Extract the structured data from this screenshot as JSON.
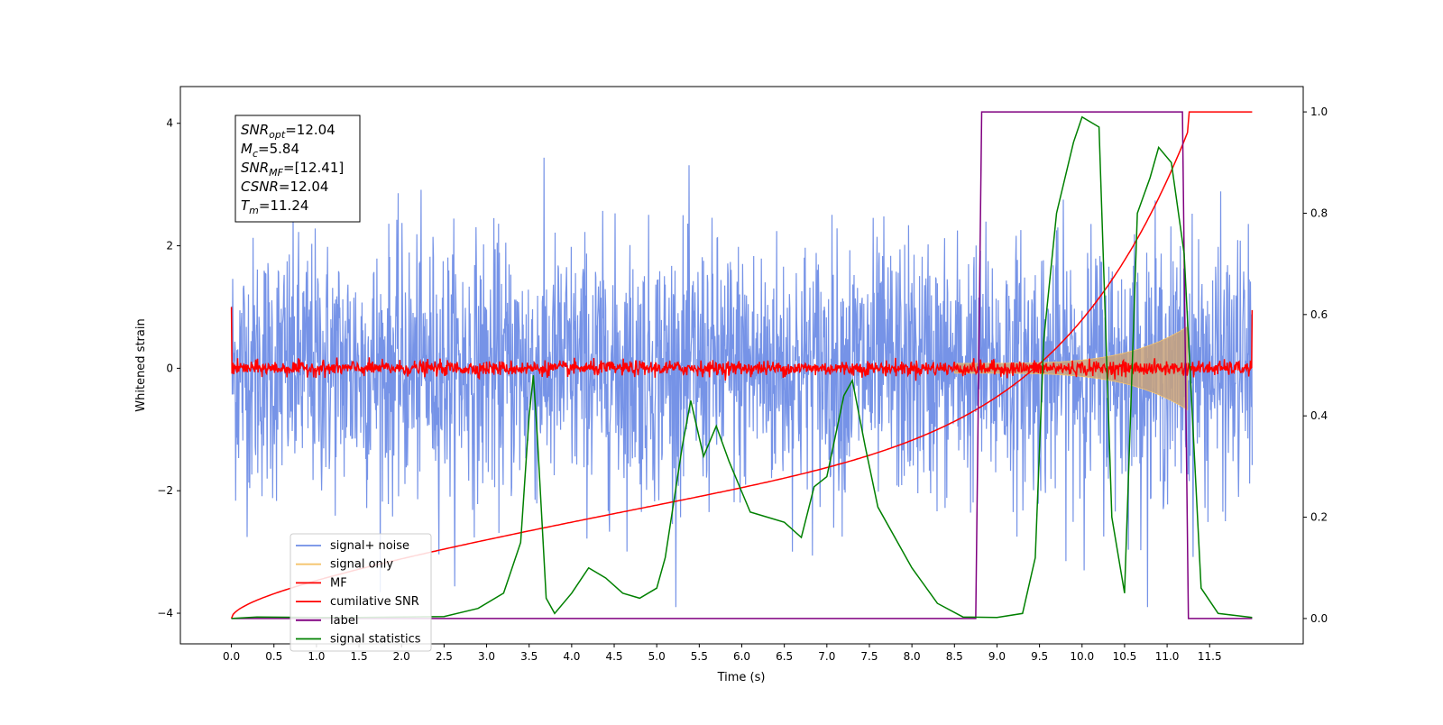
{
  "chart_data": {
    "type": "line",
    "xlabel": "Time (s)",
    "ylabel": "Whitened strain",
    "xlim": [
      -0.6,
      12.6
    ],
    "ylim": [
      -4.5,
      4.6
    ],
    "y2lim": [
      -0.05,
      1.05
    ],
    "x_ticks": [
      "0.0",
      "0.5",
      "1.0",
      "1.5",
      "2.0",
      "2.5",
      "3.0",
      "3.5",
      "4.0",
      "4.5",
      "5.0",
      "5.5",
      "6.0",
      "6.5",
      "7.0",
      "7.5",
      "8.0",
      "8.5",
      "9.0",
      "9.5",
      "10.0",
      "10.5",
      "11.0",
      "11.5"
    ],
    "y_ticks": [
      "4",
      "2",
      "0",
      "−2",
      "−4"
    ],
    "y2_ticks": [
      "1.0",
      "0.8",
      "0.6",
      "0.4",
      "0.2",
      "0.0"
    ],
    "grid": false,
    "legend_position": "lower-left",
    "annotation": {
      "lines": [
        {
          "base": "SNR",
          "sub": "opt",
          "value": "=12.04"
        },
        {
          "base": "M",
          "sub": "c",
          "value": "=5.84"
        },
        {
          "base": "SNR",
          "sub": "MF",
          "value": "=[12.41]"
        },
        {
          "base": "CSNR",
          "sub": "",
          "value": "=12.04"
        },
        {
          "base": "T",
          "sub": "m",
          "value": "=11.24"
        }
      ]
    },
    "series": [
      {
        "name": "signal+ noise",
        "color": "#6f8de6",
        "axis": "left",
        "style": "noise band (std ~1, peaks to ±4)"
      },
      {
        "name": "signal only",
        "color": "#f5c36b",
        "axis": "left",
        "style": "chirp envelope growing from 8.6 s to 11.24 s"
      },
      {
        "name": "MF",
        "color": "#ff0000",
        "axis": "left",
        "style": "small noise around 0"
      },
      {
        "name": "cumilative SNR",
        "color": "#ff0000",
        "axis": "right",
        "x": [
          0.0,
          0.5,
          1.0,
          2.0,
          3.0,
          4.0,
          5.0,
          6.0,
          7.0,
          8.0,
          8.5,
          9.0,
          9.5,
          10.0,
          10.5,
          11.0,
          11.24,
          12.0
        ],
        "y": [
          0.0,
          0.07,
          0.1,
          0.145,
          0.18,
          0.215,
          0.25,
          0.29,
          0.34,
          0.4,
          0.44,
          0.49,
          0.545,
          0.61,
          0.71,
          0.87,
          1.0,
          1.0
        ]
      },
      {
        "name": "label",
        "color": "#800080",
        "axis": "right",
        "x": [
          0.0,
          8.75,
          8.82,
          11.18,
          11.25,
          12.0
        ],
        "y": [
          0.0,
          0.0,
          1.0,
          1.0,
          0.0,
          0.0
        ]
      },
      {
        "name": "signal statistics",
        "color": "#008000",
        "axis": "right",
        "x": [
          0.0,
          0.3,
          1.0,
          1.5,
          2.0,
          2.5,
          2.9,
          3.2,
          3.4,
          3.5,
          3.55,
          3.6,
          3.7,
          3.8,
          4.0,
          4.2,
          4.4,
          4.6,
          4.8,
          5.0,
          5.1,
          5.3,
          5.4,
          5.55,
          5.7,
          5.85,
          6.0,
          6.1,
          6.3,
          6.5,
          6.7,
          6.85,
          7.0,
          7.2,
          7.3,
          7.45,
          7.6,
          8.0,
          8.3,
          8.6,
          9.0,
          9.3,
          9.45,
          9.55,
          9.7,
          9.9,
          10.0,
          10.2,
          10.35,
          10.5,
          10.65,
          10.8,
          10.9,
          11.05,
          11.2,
          11.4,
          11.6,
          12.0
        ],
        "y": [
          0.0,
          0.003,
          0.002,
          0.002,
          0.003,
          0.004,
          0.02,
          0.05,
          0.15,
          0.4,
          0.48,
          0.35,
          0.04,
          0.01,
          0.05,
          0.1,
          0.08,
          0.05,
          0.04,
          0.06,
          0.12,
          0.34,
          0.43,
          0.32,
          0.38,
          0.31,
          0.25,
          0.21,
          0.2,
          0.19,
          0.16,
          0.26,
          0.28,
          0.44,
          0.47,
          0.34,
          0.22,
          0.1,
          0.03,
          0.003,
          0.002,
          0.01,
          0.12,
          0.55,
          0.8,
          0.94,
          0.99,
          0.97,
          0.2,
          0.05,
          0.8,
          0.87,
          0.93,
          0.9,
          0.72,
          0.06,
          0.01,
          0.002
        ]
      }
    ],
    "annotation_note": ""
  }
}
